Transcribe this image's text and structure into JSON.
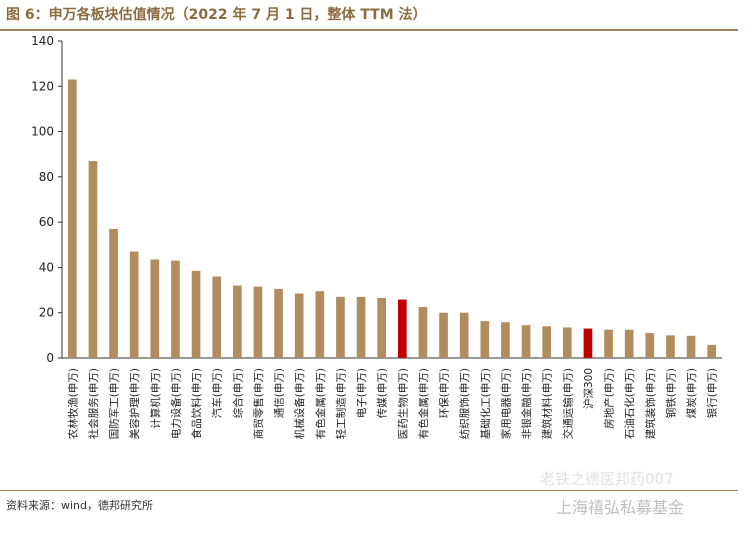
{
  "header": {
    "title": "图 6：申万各板块估值情况（2022 年 7 月 1 日，整体 TTM 法）"
  },
  "footer": {
    "source": "资料来源：wind，德邦研究所"
  },
  "watermark": {
    "line1": "老铁之德医邦药007",
    "line2": "上海禧弘私募基金"
  },
  "colors": {
    "bar": "#b08c5e",
    "highlight": "#c00000",
    "axis": "#333333"
  },
  "chart_data": {
    "type": "bar",
    "title": "",
    "xlabel": "",
    "ylabel": "",
    "ylim": [
      0,
      140
    ],
    "yticks": [
      0,
      20,
      40,
      60,
      80,
      100,
      120,
      140
    ],
    "grid": false,
    "legend": "none",
    "categories": [
      "农林牧渔(申万)",
      "社会服务(申万)",
      "国防军工(申万)",
      "美容护理(申万)",
      "计算机(申万)",
      "电力设备(申万)",
      "食品饮料(申万)",
      "汽车(申万)",
      "综合(申万)",
      "商贸零售(申万)",
      "通信(申万)",
      "机械设备(申万)",
      "有色金属(申万)",
      "轻工制造(申万)",
      "电子(申万)",
      "传媒(申万)",
      "医药生物(申万)",
      "有色金属(申万)",
      "环保(申万)",
      "纺织服饰(申万)",
      "基础化工(申万)",
      "家用电器(申万)",
      "非银金融(申万)",
      "建筑材料(申万)",
      "交通运输(申万)",
      "沪深300",
      "房地产(申万)",
      "石油石化(申万)",
      "建筑装饰(申万)",
      "钢铁(申万)",
      "煤炭(申万)",
      "银行(申万)"
    ],
    "values": [
      123,
      87,
      57,
      47,
      43.5,
      43,
      38.5,
      36,
      32,
      31.5,
      30.5,
      28.5,
      29.5,
      27,
      27,
      26.5,
      25.8,
      22.5,
      20,
      20,
      16.3,
      15.8,
      14.5,
      14,
      13.5,
      13,
      12.5,
      12.5,
      11,
      10,
      9.8,
      5.8
    ],
    "highlight": [
      "医药生物(申万)",
      "沪深300"
    ]
  }
}
